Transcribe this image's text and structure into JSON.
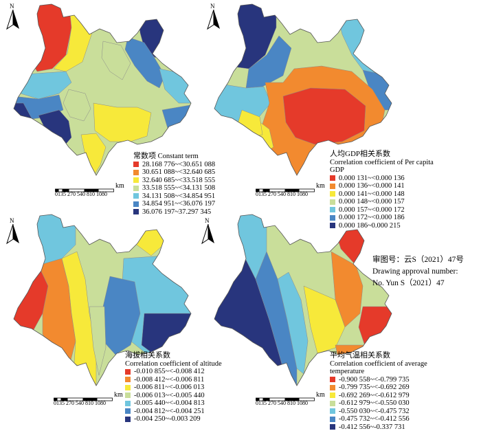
{
  "north_label": "N",
  "scale": {
    "ticks": "0135 270 540    810 1080",
    "unit": "km"
  },
  "approval": {
    "line1": "审图号：云S（2021）47号",
    "line2": "Drawing approval number:",
    "line3": "No. Yun S（2021）47"
  },
  "panels": [
    {
      "title_cn": "常数项",
      "title_en": "Constant term",
      "classes": [
        {
          "label": "28.168 776~<30.651 088",
          "color": "#e53a2a"
        },
        {
          "label": "30.651 088~<32.640 685",
          "color": "#f28a2f"
        },
        {
          "label": "32.640 685~<33.518 555",
          "color": "#f7e93a"
        },
        {
          "label": "33.518 555~<34.131 508",
          "color": "#c9de9a"
        },
        {
          "label": "34.131 508~<34.854 951",
          "color": "#70c6de"
        },
        {
          "label": "34.854 951~<36.076 197",
          "color": "#4a86c4"
        },
        {
          "label": "36.076 197~37.297 345",
          "color": "#28357d"
        }
      ]
    },
    {
      "title_cn": "人均GDP相关系数",
      "title_en": "Correlation coefficient of Per capita GDP",
      "classes": [
        {
          "label": "0.000 131~<0.000 136",
          "color": "#e53a2a"
        },
        {
          "label": "0.000 136~<0.000 141",
          "color": "#f28a2f"
        },
        {
          "label": "0.000 141~<0.000 148",
          "color": "#f7e93a"
        },
        {
          "label": "0.000 148~<0.000 157",
          "color": "#c9de9a"
        },
        {
          "label": "0.000 157~<0.000 172",
          "color": "#70c6de"
        },
        {
          "label": "0.000 172~<0.000 186",
          "color": "#4a86c4"
        },
        {
          "label": "0.000 186~0.000 215",
          "color": "#28357d"
        }
      ]
    },
    {
      "title_cn": "海拔相关系数",
      "title_en": "Correlation coefficient of altitude",
      "classes": [
        {
          "label": "-0.010 855~<-0.008 412",
          "color": "#e53a2a"
        },
        {
          "label": "-0.008 412~<-0.006 811",
          "color": "#f28a2f"
        },
        {
          "label": "-0.006 811~<-0.006 013",
          "color": "#f7e93a"
        },
        {
          "label": "-0.006 013~<-0.005 440",
          "color": "#c9de9a"
        },
        {
          "label": "-0.005 440~<-0.004 813",
          "color": "#70c6de"
        },
        {
          "label": "-0.004 812~<-0.004 251",
          "color": "#4a86c4"
        },
        {
          "label": "-0.004 250~-0.003 209",
          "color": "#28357d"
        }
      ]
    },
    {
      "title_cn": "平均气温相关系数",
      "title_en": "Correlation coefficient of average temperature",
      "classes": [
        {
          "label": "-0.900 558~<-0.799 735",
          "color": "#e53a2a"
        },
        {
          "label": "-0.799 735~<-0.692 269",
          "color": "#f28a2f"
        },
        {
          "label": "-0.692 269~<-0.612 979",
          "color": "#f7e93a"
        },
        {
          "label": "-0.612 979~<-0.550 030",
          "color": "#c9de9a"
        },
        {
          "label": "-0.550 030~<-0.475 732",
          "color": "#70c6de"
        },
        {
          "label": "-0.475 732~<-0.412 556",
          "color": "#4a86c4"
        },
        {
          "label": "-0.412 556~-0.337 731",
          "color": "#28357d"
        }
      ]
    }
  ]
}
